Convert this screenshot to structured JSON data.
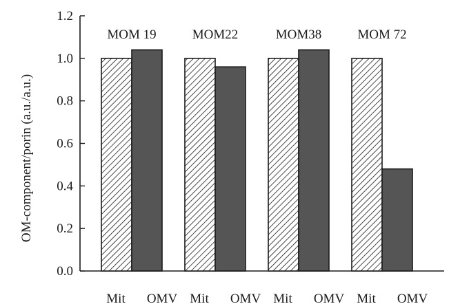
{
  "chart_data": {
    "type": "bar",
    "ylabel": "OM-component/porin (a.u./a.u.)",
    "ylim": [
      0,
      1.2
    ],
    "yticks": [
      "0.0",
      "0.2",
      "0.4",
      "0.6",
      "0.8",
      "1.0",
      "1.2"
    ],
    "groups": [
      {
        "name": "MOM 19",
        "categories": [
          "Mit",
          "OMV"
        ],
        "values": [
          1.0,
          1.04
        ]
      },
      {
        "name": "MOM22",
        "categories": [
          "Mit",
          "OMV"
        ],
        "values": [
          1.0,
          0.96
        ]
      },
      {
        "name": "MOM38",
        "categories": [
          "Mit",
          "OMV"
        ],
        "values": [
          1.0,
          1.04
        ]
      },
      {
        "name": "MOM 72",
        "categories": [
          "Mit",
          "OMV"
        ],
        "values": [
          1.0,
          0.48
        ]
      }
    ],
    "series_styles": {
      "Mit": "diagonal-hatch",
      "OMV": "dark-gray-fill"
    },
    "colors": {
      "omv_fill": "#555555",
      "outline": "#1a1a1a"
    },
    "grid": false
  }
}
